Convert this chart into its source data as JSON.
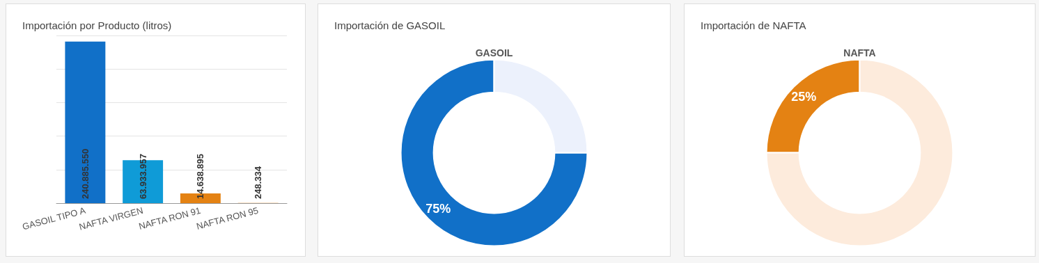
{
  "chart_data": [
    {
      "type": "bar",
      "title": "Importación por Producto (litros)",
      "categories": [
        "GASOIL TIPO A",
        "NAFTA VIRGEN",
        "NAFTA RON 91",
        "NAFTA RON 95"
      ],
      "values": [
        240885550,
        63933957,
        14638895,
        248334
      ],
      "colors": [
        "#1170c8",
        "#0f9bd7",
        "#e48213",
        "#e48213"
      ],
      "value_labels": [
        "240.885.550",
        "63.933.957",
        "14.638.895",
        "248.334"
      ],
      "ylim": [
        0,
        250000000
      ],
      "yticks": [
        {
          "value": 0,
          "label": null
        },
        {
          "value": 50000000,
          "label": null
        },
        {
          "value": 100000000,
          "label": null
        },
        {
          "value": 150000000,
          "label": null
        },
        {
          "value": 200000000,
          "label": null
        },
        {
          "value": 250000000,
          "label": null
        }
      ],
      "grid": "y"
    },
    {
      "type": "donut",
      "title": "Importación de GASOIL",
      "subtitle": "GASOIL",
      "categories": [
        null,
        null
      ],
      "values": [
        75,
        25
      ],
      "colors": [
        "#1170c8",
        "#ecf1fc"
      ],
      "value_labels": [
        "75%",
        null
      ]
    },
    {
      "type": "donut",
      "title": "Importación de NAFTA",
      "subtitle": "NAFTA",
      "categories": [
        null,
        null
      ],
      "values": [
        25,
        75
      ],
      "colors": [
        "#e48213",
        "#fdebdc"
      ],
      "value_labels": [
        "25%",
        null
      ]
    }
  ]
}
